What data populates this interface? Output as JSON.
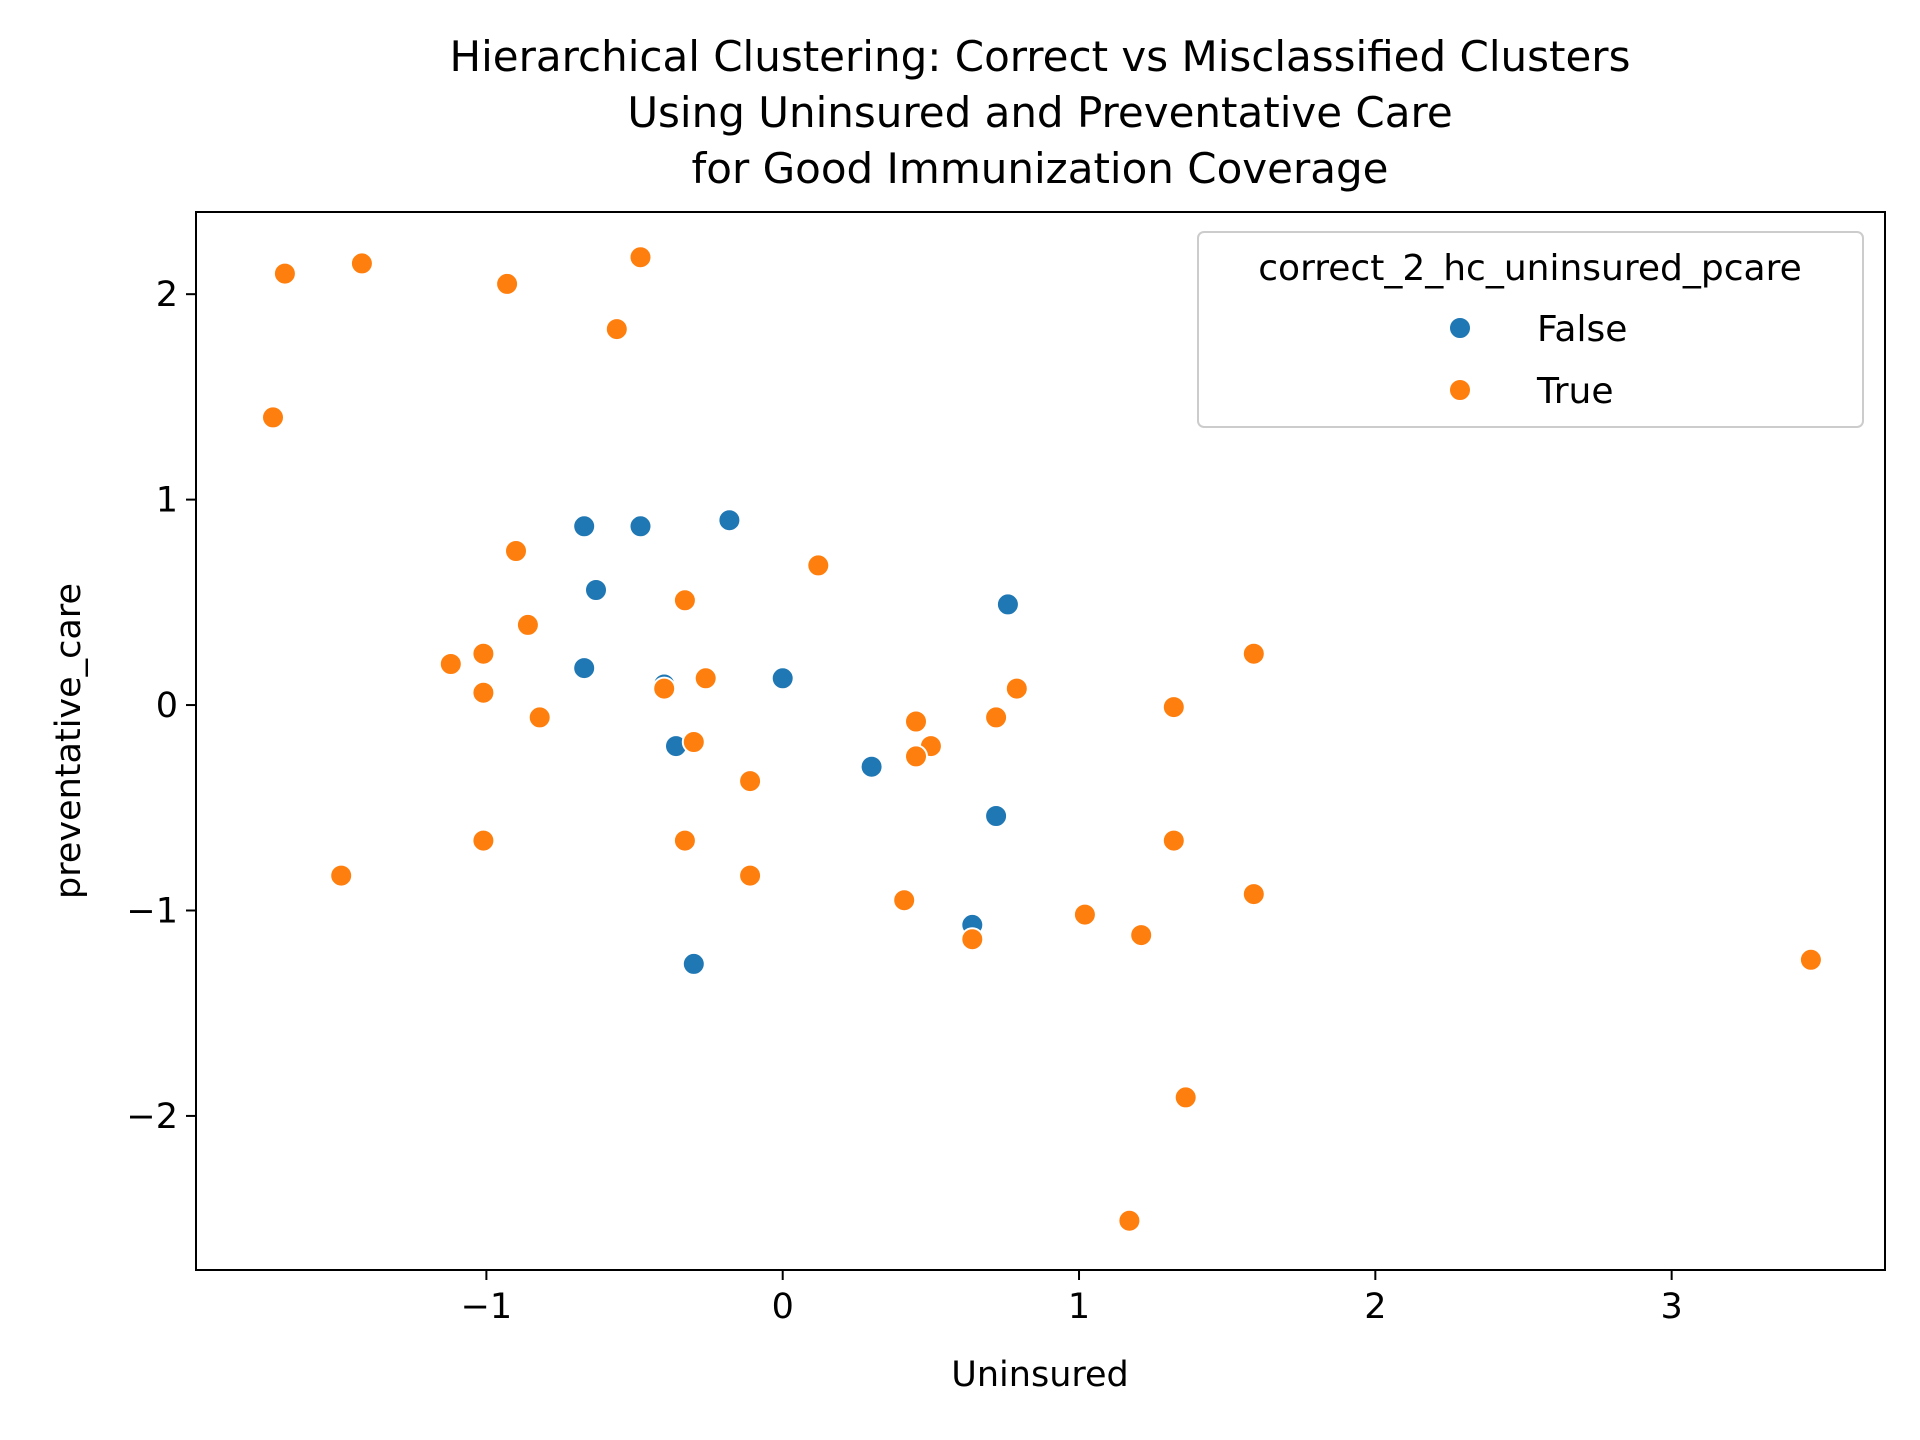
{
  "chart_data": {
    "type": "scatter",
    "title": [
      "Hierarchical Clustering: Correct vs Misclassified Clusters",
      "Using Uninsured and Preventative Care",
      "for Good Immunization Coverage"
    ],
    "xlabel": "Uninsured",
    "ylabel": "preventative_care",
    "xlim": [
      -1.98,
      3.72
    ],
    "ylim": [
      -2.75,
      2.4
    ],
    "x_ticks": [
      -1,
      0,
      1,
      2,
      3
    ],
    "x_tick_labels": [
      "−1",
      "0",
      "1",
      "2",
      "3"
    ],
    "y_ticks": [
      -2,
      -1,
      0,
      1,
      2
    ],
    "y_tick_labels": [
      "−2",
      "−1",
      "0",
      "1",
      "2"
    ],
    "grid": false,
    "legend": {
      "title": "correct_2_hc_uninsured_pcare",
      "placement": "upper right"
    },
    "series": [
      {
        "name": "False",
        "color": "#1f77b4",
        "points": [
          [
            -0.67,
            0.87
          ],
          [
            -0.48,
            0.87
          ],
          [
            -0.18,
            0.9
          ],
          [
            -0.63,
            0.56
          ],
          [
            -0.67,
            0.18
          ],
          [
            -0.4,
            0.1
          ],
          [
            0.0,
            0.13
          ],
          [
            -0.36,
            -0.2
          ],
          [
            0.3,
            -0.3
          ],
          [
            0.72,
            -0.54
          ],
          [
            0.76,
            0.49
          ],
          [
            0.64,
            -1.07
          ],
          [
            -0.3,
            -1.26
          ]
        ]
      },
      {
        "name": "True",
        "color": "#ff7f0e",
        "points": [
          [
            -1.68,
            2.1
          ],
          [
            -1.42,
            2.15
          ],
          [
            -0.93,
            2.05
          ],
          [
            -0.48,
            2.18
          ],
          [
            -0.56,
            1.83
          ],
          [
            -1.72,
            1.4
          ],
          [
            -0.9,
            0.75
          ],
          [
            0.12,
            0.68
          ],
          [
            -0.33,
            0.51
          ],
          [
            -0.86,
            0.39
          ],
          [
            -1.12,
            0.2
          ],
          [
            -1.01,
            0.25
          ],
          [
            -1.01,
            0.06
          ],
          [
            -0.82,
            -0.06
          ],
          [
            -0.4,
            0.08
          ],
          [
            -0.26,
            0.13
          ],
          [
            -0.3,
            -0.18
          ],
          [
            -0.11,
            -0.37
          ],
          [
            -0.33,
            -0.66
          ],
          [
            -0.11,
            -0.83
          ],
          [
            -1.01,
            -0.66
          ],
          [
            -1.49,
            -0.83
          ],
          [
            0.45,
            -0.08
          ],
          [
            0.5,
            -0.2
          ],
          [
            0.45,
            -0.25
          ],
          [
            0.72,
            -0.06
          ],
          [
            0.79,
            0.08
          ],
          [
            0.41,
            -0.95
          ],
          [
            0.64,
            -1.14
          ],
          [
            1.02,
            -1.02
          ],
          [
            1.21,
            -1.12
          ],
          [
            1.32,
            -0.01
          ],
          [
            1.32,
            -0.66
          ],
          [
            1.59,
            0.25
          ],
          [
            1.59,
            -0.92
          ],
          [
            1.36,
            -1.91
          ],
          [
            1.17,
            -2.51
          ],
          [
            3.47,
            -1.24
          ]
        ]
      }
    ]
  }
}
